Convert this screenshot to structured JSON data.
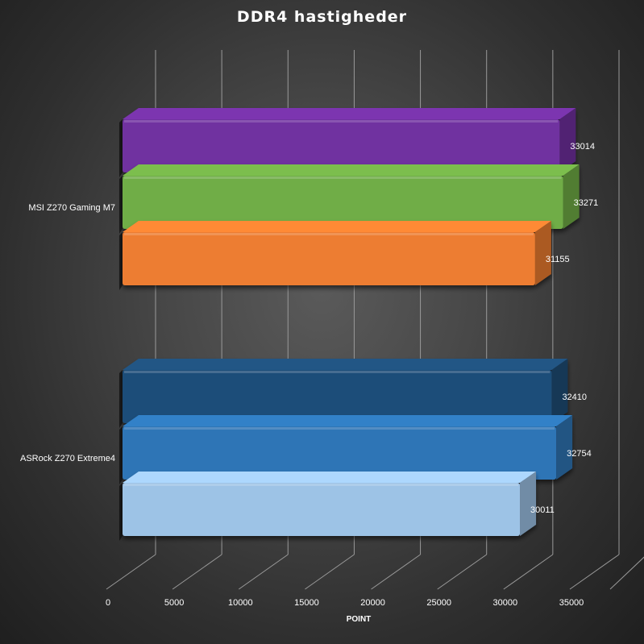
{
  "chart_data": {
    "type": "bar",
    "orientation": "horizontal",
    "style": "3d",
    "title": "DDR4 hastigheder",
    "xlabel": "POINT",
    "ylabel": "",
    "xlim": [
      0,
      35000
    ],
    "x_ticks": [
      "0",
      "5000",
      "10000",
      "15000",
      "20000",
      "25000",
      "30000",
      "35000"
    ],
    "categories": [
      "MSI Z270 Gaming M7",
      "ASRock Z270 Extreme4"
    ],
    "series_colors": [
      "#7030a0",
      "#70ad47",
      "#ed7d31",
      "#1f4e79",
      "#2e75b6",
      "#9dc3e6"
    ],
    "bars": [
      {
        "category": "MSI Z270 Gaming M7",
        "value": 33014,
        "label": "33014",
        "color": "#7030a0"
      },
      {
        "category": "MSI Z270 Gaming M7",
        "value": 33271,
        "label": "33271",
        "color": "#70ad47"
      },
      {
        "category": "MSI Z270 Gaming M7",
        "value": 31155,
        "label": "31155",
        "color": "#ed7d31"
      },
      {
        "category": "ASRock Z270 Extreme4",
        "value": 32410,
        "label": "32410",
        "color": "#1f4e79"
      },
      {
        "category": "ASRock Z270 Extreme4",
        "value": 32754,
        "label": "32754",
        "color": "#2e75b6"
      },
      {
        "category": "ASRock Z270 Extreme4",
        "value": 30011,
        "label": "30011",
        "color": "#9dc3e6"
      }
    ],
    "grid": true,
    "legend": "none"
  }
}
